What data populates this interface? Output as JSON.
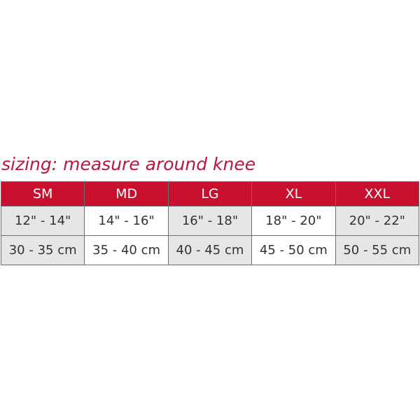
{
  "title": "sizing: measure around knee",
  "colors": {
    "header": "#c8102e",
    "title": "#b8163c",
    "alt_cell": "#e6e6e6"
  },
  "table": {
    "headers": [
      "SM",
      "MD",
      "LG",
      "XL",
      "XXL"
    ],
    "rows": [
      [
        "12\" - 14\"",
        "14\" - 16\"",
        "16\" - 18\"",
        "18\" - 20\"",
        "20\" - 22\""
      ],
      [
        "30 - 35 cm",
        "35 - 40 cm",
        "40 - 45 cm",
        "45 - 50 cm",
        "50 - 55 cm"
      ]
    ]
  }
}
